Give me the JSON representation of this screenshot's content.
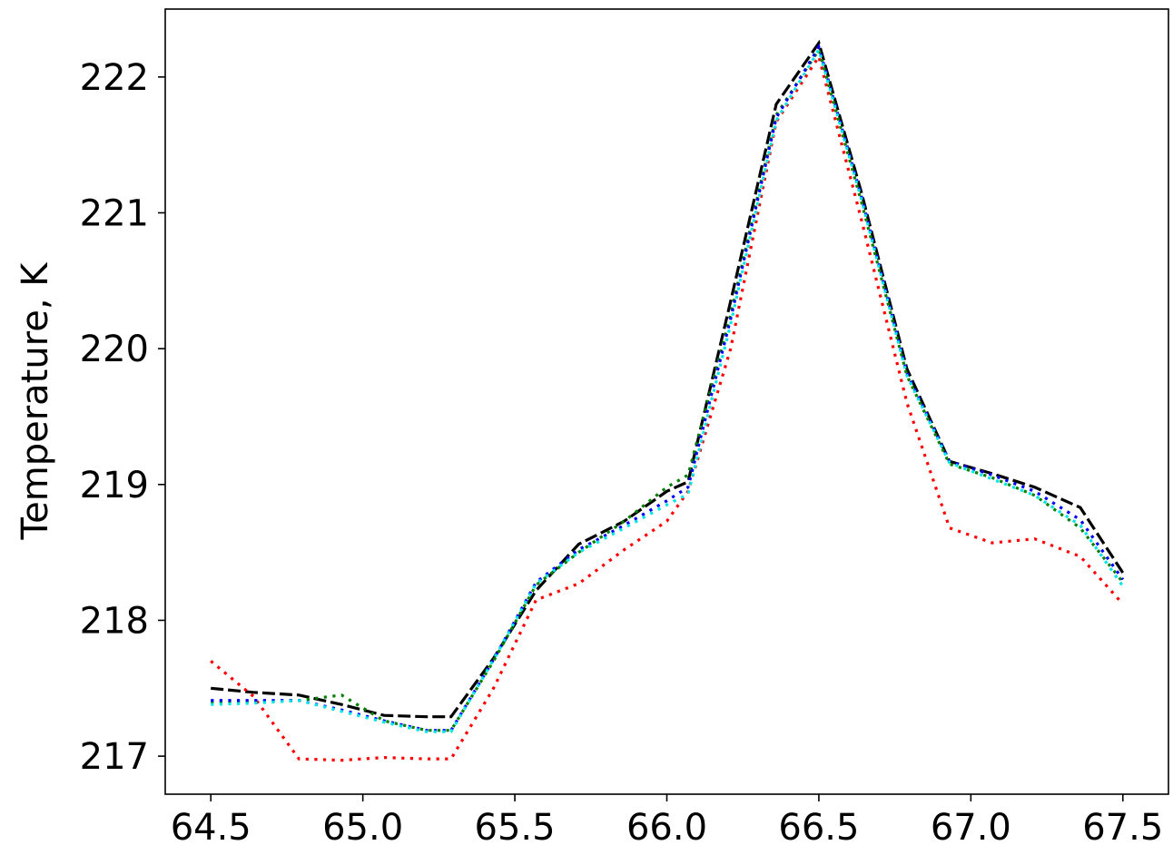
{
  "chart_data": {
    "type": "line",
    "title": "",
    "xlabel": "",
    "ylabel": "Temperature, K",
    "xlim": [
      64.35,
      67.65
    ],
    "ylim": [
      216.72,
      222.5
    ],
    "xticks": [
      64.5,
      65.0,
      65.5,
      66.0,
      66.5,
      67.0,
      67.5
    ],
    "xtick_labels": [
      "64.5",
      "65.0",
      "65.5",
      "66.0",
      "66.5",
      "67.0",
      "67.5"
    ],
    "yticks": [
      217,
      218,
      219,
      220,
      221,
      222
    ],
    "ytick_labels": [
      "217",
      "218",
      "219",
      "220",
      "221",
      "222"
    ],
    "grid": false,
    "legend": "none",
    "x": [
      64.5,
      64.64,
      64.79,
      64.93,
      65.07,
      65.21,
      65.29,
      65.43,
      65.57,
      65.71,
      65.86,
      66.0,
      66.07,
      66.21,
      66.36,
      66.5,
      66.64,
      66.79,
      66.93,
      67.07,
      67.21,
      67.36,
      67.5
    ],
    "series": [
      {
        "color": "#000000",
        "dash": "long",
        "values": [
          217.5,
          217.47,
          217.45,
          217.38,
          217.3,
          217.29,
          217.29,
          217.72,
          218.22,
          218.56,
          218.73,
          218.95,
          219.02,
          220.35,
          221.8,
          222.25,
          221.15,
          219.85,
          219.17,
          219.08,
          218.98,
          218.83,
          218.35
        ]
      },
      {
        "color": "#ff0000",
        "dash": "dotted",
        "values": [
          217.7,
          217.44,
          216.98,
          216.97,
          216.99,
          216.98,
          216.98,
          217.5,
          218.15,
          218.27,
          218.52,
          218.73,
          218.95,
          220.0,
          221.67,
          222.15,
          220.95,
          219.6,
          218.68,
          218.57,
          218.6,
          218.47,
          218.12
        ]
      },
      {
        "color": "#008000",
        "dash": "dotted",
        "values": [
          217.4,
          217.4,
          217.41,
          217.45,
          217.26,
          217.19,
          217.19,
          217.7,
          218.26,
          218.5,
          218.73,
          218.98,
          219.07,
          220.25,
          221.72,
          222.2,
          221.08,
          219.8,
          219.15,
          219.05,
          218.92,
          218.68,
          218.28
        ]
      },
      {
        "color": "#0000ff",
        "dash": "dotted",
        "values": [
          217.41,
          217.41,
          217.41,
          217.34,
          217.26,
          217.19,
          217.19,
          217.71,
          218.28,
          218.52,
          218.7,
          218.88,
          218.98,
          220.22,
          221.7,
          222.22,
          221.12,
          219.82,
          219.17,
          219.07,
          218.95,
          218.74,
          218.3
        ]
      },
      {
        "color": "#00e5e5",
        "dash": "dotted",
        "values": [
          217.38,
          217.39,
          217.41,
          217.33,
          217.25,
          217.18,
          217.18,
          217.71,
          218.27,
          218.5,
          218.68,
          218.85,
          218.93,
          220.18,
          221.68,
          222.2,
          221.1,
          219.8,
          219.16,
          219.04,
          218.92,
          218.7,
          218.25
        ]
      }
    ]
  }
}
